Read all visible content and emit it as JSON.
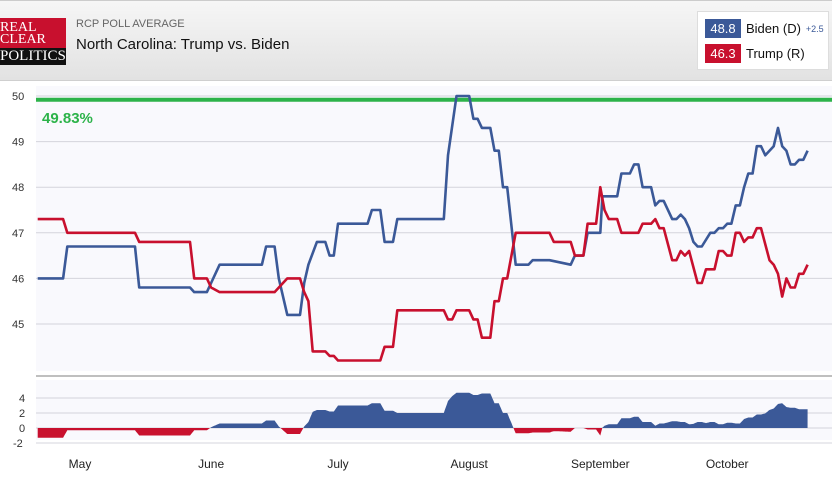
{
  "header": {
    "logo_lines": [
      "REAL",
      "CLEAR",
      "POLITICS"
    ],
    "kicker": "RCP POLL AVERAGE",
    "title": "North Carolina: Trump vs. Biden"
  },
  "legend": [
    {
      "value": "48.8",
      "name": "Biden (D)",
      "spread": "+2.5",
      "color": "#3b5998"
    },
    {
      "value": "46.3",
      "name": "Trump (R)",
      "color": "#c8102e"
    }
  ],
  "threshold": {
    "label": "49.83%",
    "value": 49.83,
    "color": "#2db34a"
  },
  "chart_data": {
    "type": "line",
    "title": "North Carolina: Trump vs. Biden",
    "x_unit": "days since May 1",
    "ylim": [
      44.2,
      50
    ],
    "yticks": [
      "50",
      "49",
      "48",
      "47",
      "46",
      "45"
    ],
    "ytick_values": [
      50,
      49,
      48,
      47,
      46,
      45
    ],
    "months": [
      {
        "label": "May",
        "day": 0
      },
      {
        "label": "June",
        "day": 31
      },
      {
        "label": "July",
        "day": 61
      },
      {
        "label": "August",
        "day": 92
      },
      {
        "label": "September",
        "day": 123
      },
      {
        "label": "October",
        "day": 153
      }
    ],
    "series": [
      {
        "name": "Biden (D)",
        "color": "#3b5998",
        "points": [
          [
            -10,
            46.0
          ],
          [
            -4,
            46.0
          ],
          [
            -3,
            46.7
          ],
          [
            13,
            46.7
          ],
          [
            14,
            45.8
          ],
          [
            26,
            45.8
          ],
          [
            27,
            45.7
          ],
          [
            30,
            45.7
          ],
          [
            31,
            45.9
          ],
          [
            33,
            46.3
          ],
          [
            43,
            46.3
          ],
          [
            44,
            46.7
          ],
          [
            46,
            46.7
          ],
          [
            47,
            46.0
          ],
          [
            49,
            45.2
          ],
          [
            52,
            45.2
          ],
          [
            53,
            45.9
          ],
          [
            54,
            46.3
          ],
          [
            56,
            46.8
          ],
          [
            58,
            46.8
          ],
          [
            59,
            46.5
          ],
          [
            60,
            46.5
          ],
          [
            61,
            47.2
          ],
          [
            68,
            47.2
          ],
          [
            69,
            47.5
          ],
          [
            71,
            47.5
          ],
          [
            72,
            46.8
          ],
          [
            74,
            46.8
          ],
          [
            75,
            47.3
          ],
          [
            86,
            47.3
          ],
          [
            87,
            48.7
          ],
          [
            89,
            50.0
          ],
          [
            92,
            50.0
          ],
          [
            93,
            49.5
          ],
          [
            94,
            49.5
          ],
          [
            95,
            49.3
          ],
          [
            97,
            49.3
          ],
          [
            98,
            48.8
          ],
          [
            99,
            48.8
          ],
          [
            100,
            48.0
          ],
          [
            101,
            48.0
          ],
          [
            103,
            46.3
          ],
          [
            106,
            46.3
          ],
          [
            107,
            46.4
          ],
          [
            111,
            46.4
          ],
          [
            116,
            46.3
          ],
          [
            117,
            46.5
          ],
          [
            119,
            46.5
          ],
          [
            120,
            47.0
          ],
          [
            123,
            47.0
          ],
          [
            123.5,
            47.8
          ],
          [
            127,
            47.8
          ],
          [
            128,
            48.3
          ],
          [
            130,
            48.3
          ],
          [
            131,
            48.5
          ],
          [
            132,
            48.5
          ],
          [
            133,
            48.0
          ],
          [
            135,
            48.0
          ],
          [
            136,
            47.6
          ],
          [
            137,
            47.7
          ],
          [
            138,
            47.7
          ],
          [
            140,
            47.3
          ],
          [
            141,
            47.3
          ],
          [
            142,
            47.4
          ],
          [
            143,
            47.3
          ],
          [
            144,
            47.1
          ],
          [
            145,
            46.8
          ],
          [
            146,
            46.7
          ],
          [
            147,
            46.7
          ],
          [
            149,
            47.0
          ],
          [
            150,
            47.0
          ],
          [
            151,
            47.1
          ],
          [
            152,
            47.1
          ],
          [
            153,
            47.2
          ],
          [
            154,
            47.2
          ],
          [
            155,
            47.6
          ],
          [
            156,
            47.6
          ],
          [
            157,
            48.0
          ],
          [
            158,
            48.3
          ],
          [
            159,
            48.3
          ],
          [
            160,
            48.9
          ],
          [
            161,
            48.9
          ],
          [
            162,
            48.7
          ],
          [
            164,
            48.9
          ],
          [
            165,
            49.3
          ],
          [
            166,
            48.9
          ],
          [
            167,
            48.8
          ],
          [
            168,
            48.5
          ],
          [
            169,
            48.5
          ],
          [
            170,
            48.6
          ],
          [
            171,
            48.6
          ],
          [
            172,
            48.8
          ]
        ]
      },
      {
        "name": "Trump (R)",
        "color": "#c8102e",
        "points": [
          [
            -10,
            47.3
          ],
          [
            -4,
            47.3
          ],
          [
            -3,
            47.0
          ],
          [
            13,
            47.0
          ],
          [
            14,
            46.8
          ],
          [
            26,
            46.8
          ],
          [
            27,
            46.0
          ],
          [
            30,
            46.0
          ],
          [
            31,
            45.8
          ],
          [
            33,
            45.7
          ],
          [
            46,
            45.7
          ],
          [
            48,
            45.9
          ],
          [
            49,
            46.0
          ],
          [
            52,
            46.0
          ],
          [
            53,
            45.7
          ],
          [
            54,
            45.5
          ],
          [
            55,
            44.4
          ],
          [
            58,
            44.4
          ],
          [
            59,
            44.3
          ],
          [
            60,
            44.3
          ],
          [
            61,
            44.2
          ],
          [
            71,
            44.2
          ],
          [
            72,
            44.5
          ],
          [
            74,
            44.5
          ],
          [
            75,
            45.3
          ],
          [
            86,
            45.3
          ],
          [
            87,
            45.1
          ],
          [
            88,
            45.1
          ],
          [
            89,
            45.3
          ],
          [
            92,
            45.3
          ],
          [
            93,
            45.1
          ],
          [
            94,
            45.1
          ],
          [
            95,
            44.7
          ],
          [
            97,
            44.7
          ],
          [
            98,
            45.5
          ],
          [
            99,
            45.5
          ],
          [
            100,
            46.0
          ],
          [
            101,
            46.0
          ],
          [
            103,
            47.0
          ],
          [
            111,
            47.0
          ],
          [
            112,
            46.8
          ],
          [
            116,
            46.8
          ],
          [
            117,
            46.5
          ],
          [
            119,
            46.5
          ],
          [
            120,
            47.2
          ],
          [
            122,
            47.2
          ],
          [
            123,
            48.0
          ],
          [
            124,
            47.5
          ],
          [
            125,
            47.3
          ],
          [
            127,
            47.3
          ],
          [
            128,
            47.0
          ],
          [
            132,
            47.0
          ],
          [
            133,
            47.2
          ],
          [
            135,
            47.2
          ],
          [
            136,
            47.3
          ],
          [
            137,
            47.1
          ],
          [
            138,
            47.1
          ],
          [
            140,
            46.4
          ],
          [
            141,
            46.4
          ],
          [
            142,
            46.6
          ],
          [
            143,
            46.5
          ],
          [
            144,
            46.6
          ],
          [
            146,
            45.9
          ],
          [
            147,
            45.9
          ],
          [
            148,
            46.2
          ],
          [
            150,
            46.2
          ],
          [
            151,
            46.6
          ],
          [
            152,
            46.6
          ],
          [
            153,
            46.5
          ],
          [
            154,
            46.5
          ],
          [
            155,
            47.0
          ],
          [
            156,
            47.0
          ],
          [
            157,
            46.8
          ],
          [
            158,
            46.9
          ],
          [
            159,
            46.9
          ],
          [
            160,
            47.1
          ],
          [
            161,
            47.1
          ],
          [
            163,
            46.4
          ],
          [
            164,
            46.3
          ],
          [
            165,
            46.1
          ],
          [
            166,
            45.6
          ],
          [
            167,
            46.0
          ],
          [
            168,
            45.8
          ],
          [
            169,
            45.8
          ],
          [
            170,
            46.1
          ],
          [
            171,
            46.1
          ],
          [
            172,
            46.3
          ]
        ]
      }
    ],
    "spread_panel": {
      "yticks": [
        "4",
        "2",
        "0",
        "-2"
      ],
      "ytick_values": [
        4,
        2,
        0,
        -2
      ],
      "positive_color": "#3b5998",
      "negative_color": "#c8102e"
    }
  }
}
